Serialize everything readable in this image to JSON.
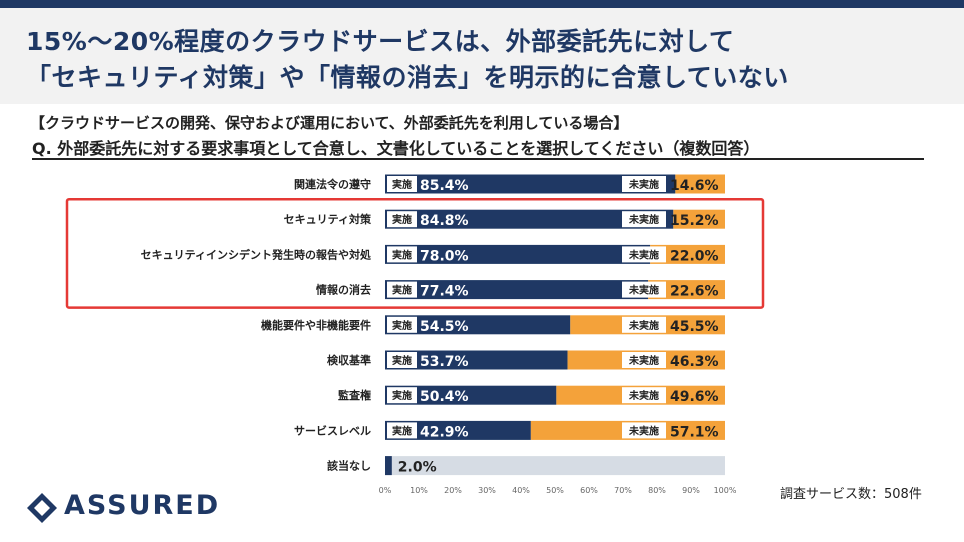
{
  "header": {
    "title_line1": "15%～20%程度のクラウドサービスは、外部委託先に対して",
    "title_line2": "「セキュリティ対策」や「情報の消去」を明示的に合意していない"
  },
  "subtitle": {
    "condition": "【クラウドサービスの開発、保守および運用において、外部委託先を利用している場合】",
    "question": "Q. 外部委託先に対する要求事項として合意し、文書化していることを選択してください（複数回答）"
  },
  "footnote": "調査サービス数：508件",
  "logo": {
    "text": "ASSURED"
  },
  "colors": {
    "implemented": "#1f3864",
    "not_implemented": "#f4a23a",
    "none_bg": "#d6dce4",
    "highlight": "#e53935",
    "title": "#1f3864"
  },
  "chart_data": {
    "type": "bar",
    "orientation": "horizontal",
    "stacked": true,
    "categories": [
      "関連法令の遵守",
      "セキュリティ対策",
      "セキュリティインシデント発生時の報告や対処",
      "情報の消去",
      "機能要件や非機能要件",
      "検収基準",
      "監査権",
      "サービスレベル",
      "該当なし"
    ],
    "series": [
      {
        "name": "実施",
        "values": [
          85.4,
          84.8,
          78.0,
          77.4,
          54.5,
          53.7,
          50.4,
          42.9,
          2.0
        ]
      },
      {
        "name": "未実施",
        "values": [
          14.6,
          15.2,
          22.0,
          22.6,
          45.5,
          46.3,
          49.6,
          57.1,
          null
        ]
      }
    ],
    "series_labels": {
      "implemented": "実施",
      "not_implemented": "未実施"
    },
    "value_labels": {
      "implemented": [
        "85.4%",
        "84.8%",
        "78.0%",
        "77.4%",
        "54.5%",
        "53.7%",
        "50.4%",
        "42.9%",
        "2.0%"
      ],
      "not_implemented": [
        "14.6%",
        "15.2%",
        "22.0%",
        "22.6%",
        "45.5%",
        "46.3%",
        "49.6%",
        "57.1%",
        ""
      ]
    },
    "highlighted_categories": [
      "セキュリティ対策",
      "セキュリティインシデント発生時の報告や対処",
      "情報の消去"
    ],
    "xlim": [
      0,
      100
    ],
    "x_ticks": [
      "0%",
      "10%",
      "20%",
      "30%",
      "40%",
      "50%",
      "60%",
      "70%",
      "80%",
      "90%",
      "100%"
    ],
    "unit": "%",
    "grid": false
  }
}
